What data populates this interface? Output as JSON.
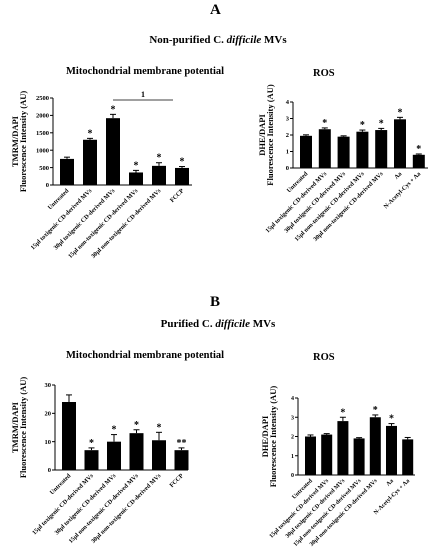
{
  "panel_a": {
    "letter": "A",
    "title_prefix": "Non-purified C. ",
    "title_italic": "difficile",
    "title_suffix": " MVs"
  },
  "panel_b": {
    "letter": "B",
    "title_prefix": "Purified C. ",
    "title_italic": "difficile",
    "title_suffix": " MVs"
  },
  "chart_data": [
    {
      "type": "bar",
      "panel": "A",
      "title": "Mitochondrial  membrane potential",
      "ylabel": [
        "TMRM/DAPI",
        "Fluorescence Intensity (AU)"
      ],
      "ylim": [
        0,
        2500
      ],
      "yticks": [
        0,
        500,
        1000,
        1500,
        2000,
        2500
      ],
      "categories": [
        "Untreated",
        "15µl toxigenic CD-derived MVs",
        "30µl toxigenic CD-derived MVs",
        "15µl non-toxigenic CD-derived MVs",
        "30µl non-toxigenic CD-derived MVs",
        "FCCP"
      ],
      "values": [
        750,
        1300,
        1920,
        360,
        550,
        490
      ],
      "errors": [
        50,
        40,
        110,
        60,
        90,
        40
      ],
      "significance": [
        "",
        "*",
        "*",
        "*",
        "*",
        "*"
      ],
      "bracket": {
        "from": 2,
        "to": 4,
        "label": "1"
      }
    },
    {
      "type": "bar",
      "panel": "A",
      "title": "ROS",
      "ylabel": [
        "DHE/DAPI",
        "Fluorescence Intensity (AU)"
      ],
      "ylim": [
        0,
        4
      ],
      "yticks": [
        0,
        1,
        2,
        3,
        4
      ],
      "categories": [
        "Untreated",
        "15µl toxigenic CD-derived MVs",
        "30µl toxigenic CD-derived MVs",
        "15µl non-toxigenic CD-derived MVs",
        "30µl non-toxigenic CD-derived MVs",
        "Aa",
        "N-Acetyl-Cys + Aa"
      ],
      "values": [
        1.95,
        2.35,
        1.9,
        2.2,
        2.3,
        2.95,
        0.8
      ],
      "errors": [
        0.06,
        0.08,
        0.05,
        0.1,
        0.1,
        0.12,
        0.05
      ],
      "significance": [
        "",
        "*",
        "",
        "*",
        "*",
        "*",
        "*"
      ]
    },
    {
      "type": "bar",
      "panel": "B",
      "title": "Mitochondrial  membrane potential",
      "ylabel": [
        "TMRM/DAPI",
        "Fluorescence Intensity (AU)"
      ],
      "ylim": [
        0,
        30
      ],
      "yticks": [
        0,
        10,
        20,
        30
      ],
      "categories": [
        "Untreated",
        "15µl toxigenic CD-derived MVs",
        "30µl toxigenic CD-derived MVs",
        "15µl non-toxigenic CD-derived MVs",
        "30µl non-toxigenic CD-derived MVs",
        "FCCP"
      ],
      "values": [
        24,
        7,
        10,
        13,
        10.5,
        7
      ],
      "errors": [
        2.5,
        0.8,
        2.5,
        1.2,
        2.8,
        0.8
      ],
      "significance": [
        "",
        "*",
        "*",
        "*",
        "*",
        "**"
      ]
    },
    {
      "type": "bar",
      "panel": "B",
      "title": "ROS",
      "ylabel": [
        "DHE/DAPI",
        "Fluorescence Intensity (AU)"
      ],
      "ylim": [
        0,
        4
      ],
      "yticks": [
        0,
        1,
        2,
        3,
        4
      ],
      "categories": [
        "Untreated",
        "15µl toxigenic CD-derived MVs",
        "30µl toxigenic CD-derived MVs",
        "15µl non-toxigenic CD-derived MVs",
        "30µl non-toxigenic CD-derived MVs",
        "Aa",
        "N-Acetyl-Cys + Aa"
      ],
      "values": [
        2.0,
        2.1,
        2.8,
        1.9,
        3.0,
        2.55,
        1.85
      ],
      "errors": [
        0.08,
        0.05,
        0.2,
        0.04,
        0.12,
        0.12,
        0.1
      ],
      "significance": [
        "",
        "",
        "*",
        "",
        "*",
        "*",
        ""
      ]
    }
  ]
}
